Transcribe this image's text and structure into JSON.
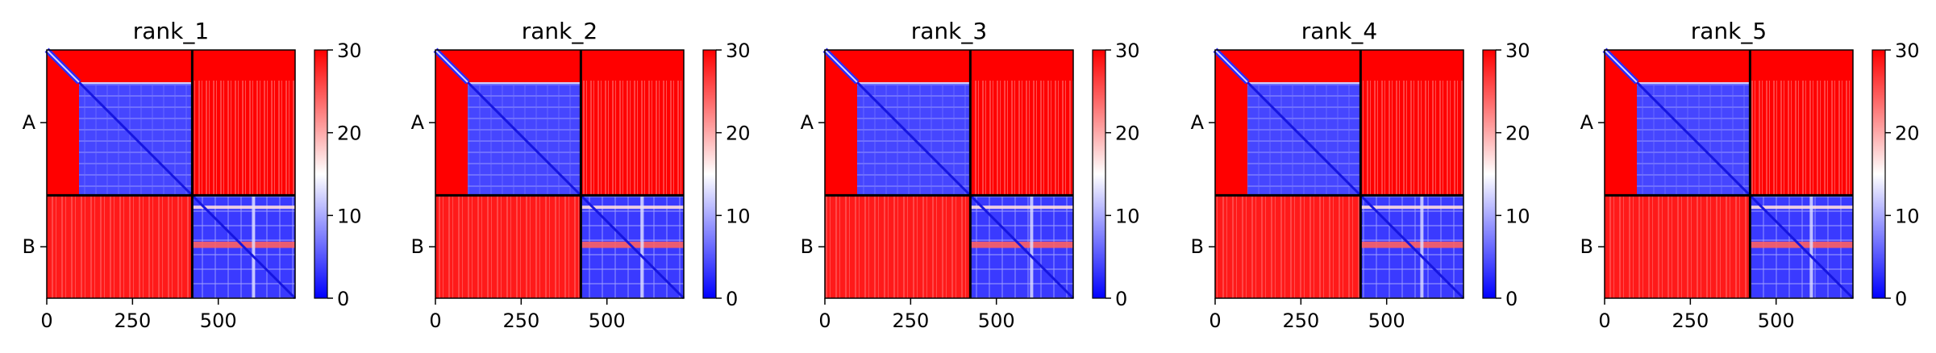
{
  "chart_data": [
    {
      "type": "heatmap",
      "title": "rank_1",
      "x_ticks": [
        0,
        250,
        500
      ],
      "y_categories": [
        "A",
        "B"
      ],
      "x_range": [
        0,
        724
      ],
      "chain_boundary": 424,
      "colorbar": {
        "min": 0,
        "max": 30,
        "ticks": [
          0,
          10,
          20,
          30
        ]
      },
      "xlabel": "",
      "ylabel": ""
    },
    {
      "type": "heatmap",
      "title": "rank_2",
      "x_ticks": [
        0,
        250,
        500
      ],
      "y_categories": [
        "A",
        "B"
      ],
      "x_range": [
        0,
        724
      ],
      "chain_boundary": 424,
      "colorbar": {
        "min": 0,
        "max": 30,
        "ticks": [
          0,
          10,
          20,
          30
        ]
      },
      "xlabel": "",
      "ylabel": ""
    },
    {
      "type": "heatmap",
      "title": "rank_3",
      "x_ticks": [
        0,
        250,
        500
      ],
      "y_categories": [
        "A",
        "B"
      ],
      "x_range": [
        0,
        724
      ],
      "chain_boundary": 424,
      "colorbar": {
        "min": 0,
        "max": 30,
        "ticks": [
          0,
          10,
          20,
          30
        ]
      },
      "xlabel": "",
      "ylabel": ""
    },
    {
      "type": "heatmap",
      "title": "rank_4",
      "x_ticks": [
        0,
        250,
        500
      ],
      "y_categories": [
        "A",
        "B"
      ],
      "x_range": [
        0,
        724
      ],
      "chain_boundary": 424,
      "colorbar": {
        "min": 0,
        "max": 30,
        "ticks": [
          0,
          10,
          20,
          30
        ]
      },
      "xlabel": "",
      "ylabel": ""
    },
    {
      "type": "heatmap",
      "title": "rank_5",
      "x_ticks": [
        0,
        250,
        500
      ],
      "y_categories": [
        "A",
        "B"
      ],
      "x_range": [
        0,
        724
      ],
      "chain_boundary": 424,
      "colorbar": {
        "min": 0,
        "max": 30,
        "ticks": [
          0,
          10,
          20,
          30
        ]
      },
      "xlabel": "",
      "ylabel": ""
    }
  ],
  "colors": {
    "low": "#0000ff",
    "mid": "#ffffff",
    "high": "#ff0000",
    "divider": "#000000"
  }
}
